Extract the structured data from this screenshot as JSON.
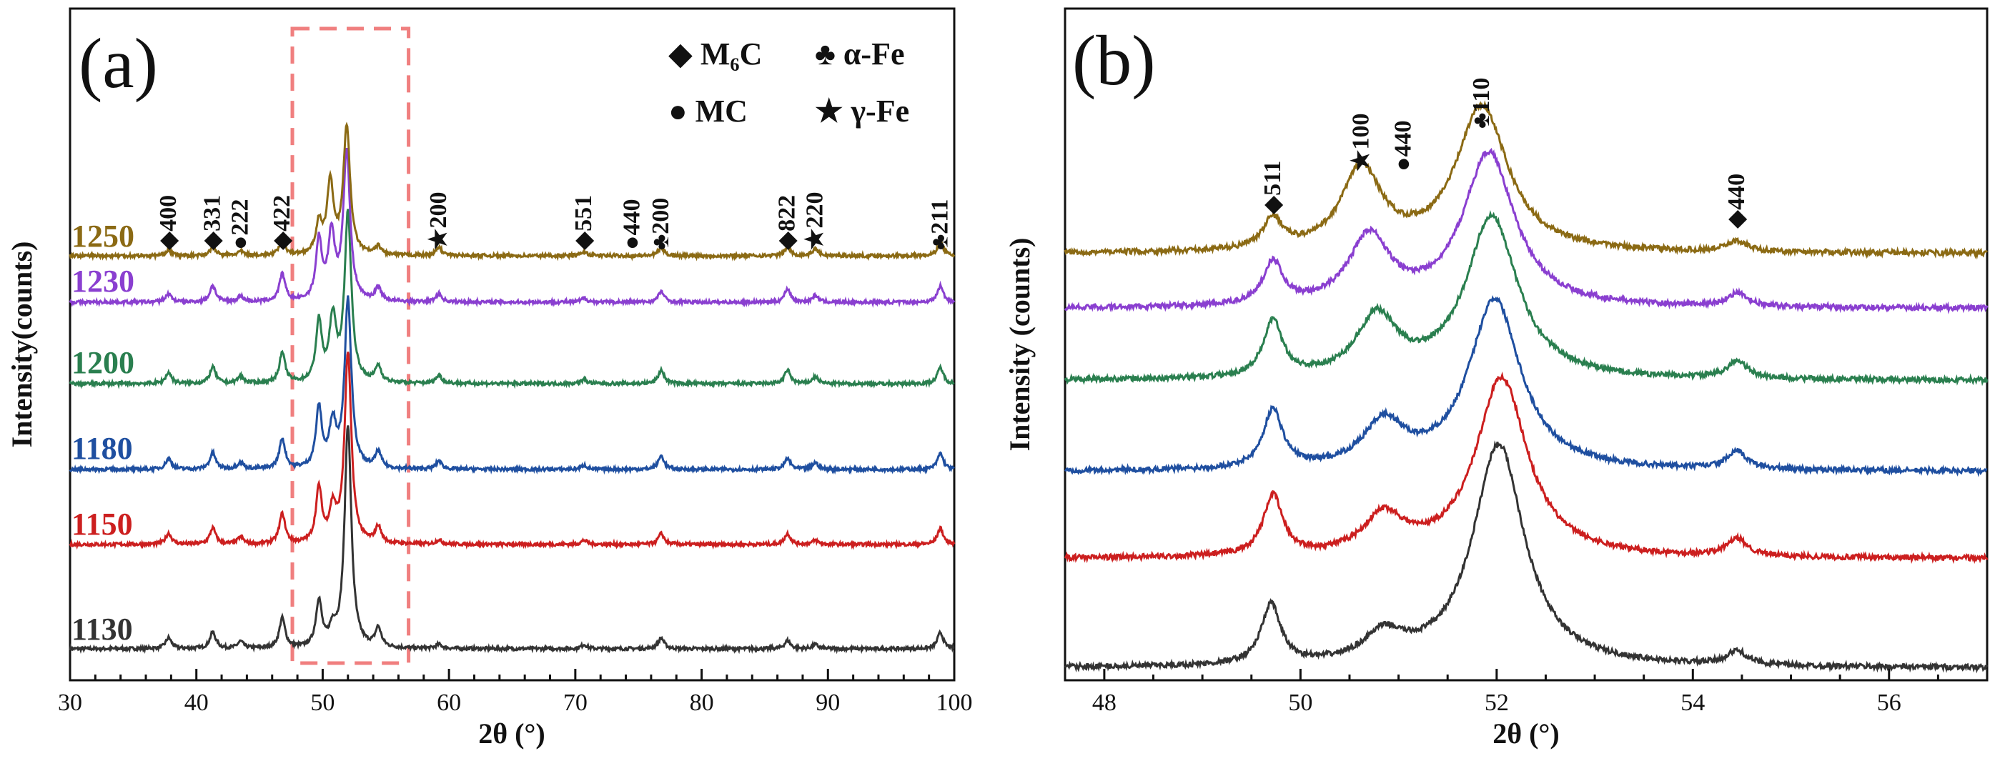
{
  "panels": [
    {
      "panel_label": "(a)",
      "legend": [
        {
          "symbol": "◆",
          "symbol_name": "diamond-icon",
          "text": "M₆C"
        },
        {
          "symbol": "♣",
          "symbol_name": "club-icon",
          "text": "α-Fe"
        },
        {
          "symbol": "●",
          "symbol_name": "dot-icon",
          "text": "MC"
        },
        {
          "symbol": "★",
          "symbol_name": "star-icon",
          "text": "γ-Fe"
        }
      ],
      "peak_labels": [
        {
          "symbol": "◆",
          "hkl": "400",
          "x": 37.8
        },
        {
          "symbol": "◆",
          "hkl": "331",
          "x": 41.3
        },
        {
          "symbol": "●",
          "hkl": "222",
          "x": 43.5
        },
        {
          "symbol": "◆",
          "hkl": "422",
          "x": 46.8
        },
        {
          "symbol": "★",
          "hkl": "200",
          "x": 59.2
        },
        {
          "symbol": "◆",
          "hkl": "551",
          "x": 70.7
        },
        {
          "symbol": "●",
          "hkl": "440",
          "x": 74.5
        },
        {
          "symbol": "♣",
          "hkl": "200",
          "x": 76.8
        },
        {
          "symbol": "◆",
          "hkl": "822",
          "x": 86.8
        },
        {
          "symbol": "★",
          "hkl": "220",
          "x": 89.0
        },
        {
          "symbol": "♣",
          "hkl": "211",
          "x": 98.9
        }
      ]
    },
    {
      "panel_label": "(b)",
      "peak_labels": [
        {
          "symbol": "◆",
          "hkl": "511",
          "x": 49.72
        },
        {
          "symbol": "★",
          "hkl": "100",
          "x": 50.62
        },
        {
          "symbol": "●",
          "hkl": "440",
          "x": 51.05
        },
        {
          "symbol": "♣",
          "hkl": "110",
          "x": 51.85
        },
        {
          "symbol": "◆",
          "hkl": "440",
          "x": 54.45
        }
      ]
    }
  ],
  "chart_data": [
    {
      "type": "line",
      "panel": "(a)",
      "xlabel": "2θ (°)",
      "ylabel": "Intensity(counts)",
      "xlim": [
        30,
        100
      ],
      "xticks": [
        30,
        40,
        50,
        60,
        70,
        80,
        90,
        100
      ],
      "y_ticks_shown": false,
      "highlight_box": {
        "x_range": [
          47.6,
          56.8
        ],
        "style": "dashed",
        "color": "#f07f7f"
      },
      "series": [
        {
          "name": "1130",
          "color": "#333333",
          "peaks": [
            [
              37.8,
              0.04
            ],
            [
              41.3,
              0.06
            ],
            [
              43.5,
              0.025
            ],
            [
              46.8,
              0.11
            ],
            [
              49.7,
              0.17
            ],
            [
              50.8,
              0.06
            ],
            [
              52.0,
              0.82
            ],
            [
              54.4,
              0.07
            ],
            [
              59.2,
              0.015
            ],
            [
              70.7,
              0.015
            ],
            [
              76.8,
              0.04
            ],
            [
              86.8,
              0.03
            ],
            [
              89.0,
              0.015
            ],
            [
              98.9,
              0.06
            ]
          ]
        },
        {
          "name": "1150",
          "color": "#cc1f1f",
          "peaks": [
            [
              37.8,
              0.04
            ],
            [
              41.3,
              0.06
            ],
            [
              43.5,
              0.025
            ],
            [
              46.8,
              0.11
            ],
            [
              49.7,
              0.2
            ],
            [
              50.8,
              0.12
            ],
            [
              52.0,
              0.7
            ],
            [
              54.4,
              0.06
            ],
            [
              59.2,
              0.015
            ],
            [
              70.7,
              0.015
            ],
            [
              76.8,
              0.04
            ],
            [
              86.8,
              0.04
            ],
            [
              89.0,
              0.015
            ],
            [
              98.9,
              0.06
            ]
          ]
        },
        {
          "name": "1180",
          "color": "#1f4fa0",
          "peaks": [
            [
              37.8,
              0.04
            ],
            [
              41.3,
              0.06
            ],
            [
              43.5,
              0.025
            ],
            [
              46.8,
              0.11
            ],
            [
              49.7,
              0.22
            ],
            [
              50.8,
              0.16
            ],
            [
              52.0,
              0.62
            ],
            [
              54.4,
              0.06
            ],
            [
              59.2,
              0.03
            ],
            [
              70.7,
              0.015
            ],
            [
              76.8,
              0.05
            ],
            [
              86.8,
              0.04
            ],
            [
              89.0,
              0.025
            ],
            [
              98.9,
              0.06
            ]
          ]
        },
        {
          "name": "1200",
          "color": "#2a7f4f",
          "peaks": [
            [
              37.8,
              0.04
            ],
            [
              41.3,
              0.06
            ],
            [
              43.5,
              0.025
            ],
            [
              46.8,
              0.11
            ],
            [
              49.7,
              0.22
            ],
            [
              50.8,
              0.23
            ],
            [
              52.0,
              0.62
            ],
            [
              54.4,
              0.06
            ],
            [
              59.2,
              0.03
            ],
            [
              70.7,
              0.015
            ],
            [
              76.8,
              0.05
            ],
            [
              86.8,
              0.05
            ],
            [
              89.0,
              0.025
            ],
            [
              98.9,
              0.06
            ]
          ]
        },
        {
          "name": "1230",
          "color": "#8a3fd0",
          "peaks": [
            [
              37.8,
              0.03
            ],
            [
              41.3,
              0.06
            ],
            [
              43.5,
              0.02
            ],
            [
              46.8,
              0.1
            ],
            [
              49.7,
              0.22
            ],
            [
              50.7,
              0.24
            ],
            [
              51.9,
              0.55
            ],
            [
              54.4,
              0.05
            ],
            [
              59.2,
              0.03
            ],
            [
              70.7,
              0.015
            ],
            [
              76.8,
              0.04
            ],
            [
              86.8,
              0.05
            ],
            [
              89.0,
              0.025
            ],
            [
              98.9,
              0.06
            ]
          ]
        },
        {
          "name": "1250",
          "color": "#8b6a14",
          "peaks": [
            [
              37.8,
              0.02
            ],
            [
              41.3,
              0.03
            ],
            [
              43.5,
              0.015
            ],
            [
              46.8,
              0.05
            ],
            [
              49.7,
              0.11
            ],
            [
              50.6,
              0.26
            ],
            [
              51.9,
              0.47
            ],
            [
              54.4,
              0.03
            ],
            [
              59.2,
              0.03
            ],
            [
              70.7,
              0.015
            ],
            [
              76.8,
              0.03
            ],
            [
              86.8,
              0.03
            ],
            [
              89.0,
              0.025
            ],
            [
              98.9,
              0.05
            ]
          ]
        }
      ]
    },
    {
      "type": "line",
      "panel": "(b)",
      "xlabel": "2θ (°)",
      "ylabel": "Intensity (counts)",
      "xlim": [
        47.6,
        57.0
      ],
      "xticks": [
        48,
        50,
        52,
        54,
        56
      ],
      "y_ticks_shown": false,
      "series": [
        {
          "name": "1130",
          "color": "#333333",
          "peaks": [
            [
              49.7,
              0.07
            ],
            [
              50.85,
              0.032
            ],
            [
              52.02,
              0.26
            ],
            [
              54.45,
              0.016
            ]
          ]
        },
        {
          "name": "1150",
          "color": "#cc1f1f",
          "peaks": [
            [
              49.72,
              0.07
            ],
            [
              50.85,
              0.045
            ],
            [
              52.05,
              0.21
            ],
            [
              54.45,
              0.02
            ]
          ]
        },
        {
          "name": "1180",
          "color": "#1f4fa0",
          "peaks": [
            [
              49.72,
              0.068
            ],
            [
              50.85,
              0.052
            ],
            [
              51.98,
              0.2
            ],
            [
              54.45,
              0.02
            ]
          ]
        },
        {
          "name": "1200",
          "color": "#2a7f4f",
          "peaks": [
            [
              49.72,
              0.065
            ],
            [
              50.78,
              0.07
            ],
            [
              51.95,
              0.19
            ],
            [
              54.45,
              0.02
            ]
          ]
        },
        {
          "name": "1230",
          "color": "#8a3fd0",
          "peaks": [
            [
              49.72,
              0.05
            ],
            [
              50.7,
              0.08
            ],
            [
              51.92,
              0.18
            ],
            [
              54.45,
              0.015
            ]
          ]
        },
        {
          "name": "1250",
          "color": "#8b6a14",
          "peaks": [
            [
              49.72,
              0.035
            ],
            [
              50.62,
              0.095
            ],
            [
              51.85,
              0.17
            ],
            [
              54.45,
              0.012
            ]
          ]
        }
      ]
    }
  ]
}
